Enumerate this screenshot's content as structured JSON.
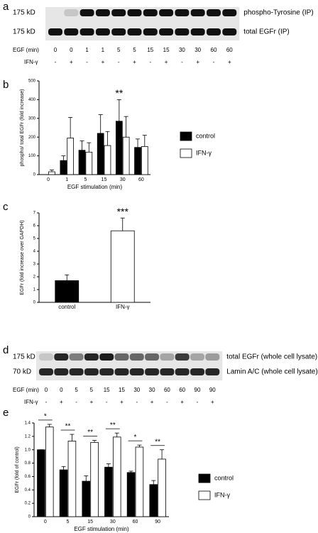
{
  "panel_labels": [
    "a",
    "b",
    "c",
    "d",
    "e"
  ],
  "blots": [
    {
      "weights": [
        "175 kD",
        "175 kD"
      ],
      "rows": [
        "phospho-Tyrosine (IP)",
        "total EGFr (IP)"
      ],
      "egf_label": "EGF (min)",
      "egf": [
        "0",
        "0",
        "1",
        "1",
        "5",
        "5",
        "15",
        "15",
        "30",
        "30",
        "60",
        "60"
      ],
      "ifn_label": "IFN-γ",
      "ifn": [
        "-",
        "+",
        "-",
        "+",
        "-",
        "+",
        "-",
        "+",
        "-",
        "+",
        "-",
        "+"
      ]
    },
    {
      "weights": [
        "175 kD",
        "70 kD"
      ],
      "rows": [
        "total EGFr (whole cell lysate)",
        "Lamin A/C (whole cell lysate)"
      ],
      "egf_label": "EGF (min)",
      "egf": [
        "0",
        "0",
        "5",
        "5",
        "15",
        "15",
        "30",
        "30",
        "60",
        "60",
        "90",
        "90"
      ],
      "ifn_label": "IFN-γ",
      "ifn": [
        "-",
        "+",
        "-",
        "+",
        "-",
        "+",
        "-",
        "+",
        "-",
        "+",
        "-",
        "+"
      ]
    }
  ],
  "chart_data": [
    {
      "type": "bar",
      "y_label": "phospho/ total EGFr (fold increase)",
      "x_label": "EGF stimulation (min)",
      "categories": [
        "0",
        "1",
        "5",
        "15",
        "30",
        "60"
      ],
      "series": [
        {
          "name": "control",
          "color": "#000000",
          "values": [
            null,
            75,
            130,
            220,
            285,
            145
          ],
          "errors": [
            null,
            25,
            50,
            100,
            115,
            45
          ]
        },
        {
          "name": "IFN-γ",
          "color": "#ffffff",
          "values": [
            15,
            195,
            120,
            155,
            200,
            150
          ],
          "errors": [
            10,
            110,
            50,
            75,
            110,
            60
          ]
        }
      ],
      "annotations": [
        null,
        null,
        null,
        null,
        "**",
        null
      ],
      "annotation_bracket": false,
      "ylim": [
        0,
        500
      ],
      "yticks": [
        0,
        100,
        200,
        300,
        400,
        500
      ],
      "legend": "right"
    },
    {
      "type": "bar",
      "y_label": "EGFr (fold increase over GAPDH)",
      "categories": [
        "control",
        "IFN-γ"
      ],
      "values": [
        1.7,
        5.6
      ],
      "errors": [
        0.45,
        1.0
      ],
      "colors": [
        "#000000",
        "#ffffff"
      ],
      "annotations": [
        null,
        "***"
      ],
      "ylim": [
        0,
        7
      ],
      "yticks": [
        0,
        1,
        2,
        3,
        4,
        5,
        6,
        7
      ]
    },
    {
      "type": "bar",
      "y_label": "EGFr (fold of control)",
      "x_label": "EGF stimulation (min)",
      "categories": [
        "0",
        "5",
        "15",
        "30",
        "60",
        "90"
      ],
      "series": [
        {
          "name": "control",
          "color": "#000000",
          "values": [
            1.0,
            0.7,
            0.53,
            0.74,
            0.66,
            0.48
          ],
          "errors": [
            0,
            0.05,
            0.08,
            0.05,
            0.02,
            0.06
          ]
        },
        {
          "name": "IFN-γ",
          "color": "#ffffff",
          "values": [
            1.34,
            1.13,
            1.11,
            1.19,
            1.04,
            0.86
          ],
          "errors": [
            0.04,
            0.1,
            0.03,
            0.06,
            0.03,
            0.14
          ]
        }
      ],
      "annotations": [
        "*",
        "**",
        "**",
        "**",
        "*",
        "**"
      ],
      "annotation_bracket": true,
      "ylim": [
        0,
        1.4
      ],
      "yticks": [
        0,
        0.2,
        0.4,
        0.6,
        0.8,
        {
          "value": 1,
          "label": "1.0"
        },
        1.2,
        1.4
      ],
      "legend": "right"
    }
  ]
}
